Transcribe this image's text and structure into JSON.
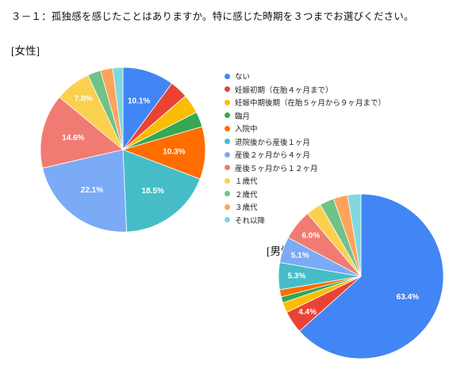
{
  "title": "３－１：孤独感を感じたことはありますか。特に感じた時期を３つまでお選びください。",
  "female_label": "[女性]",
  "male_label": "[男性]",
  "legend": [
    {
      "label": "ない",
      "color": "#4285F4"
    },
    {
      "label": "妊娠初期（在胎４ヶ月まで）",
      "color": "#EA4335"
    },
    {
      "label": "妊娠中期後期（在胎５ヶ月から９ヶ月まで）",
      "color": "#FBBC04"
    },
    {
      "label": "臨月",
      "color": "#34A853"
    },
    {
      "label": "入院中",
      "color": "#FF6D01"
    },
    {
      "label": "退院後から産後１ヶ月",
      "color": "#46BDC6"
    },
    {
      "label": "産後２ヶ月から４ヶ月",
      "color": "#7BAAF7"
    },
    {
      "label": "産後５ヶ月から１２ヶ月",
      "color": "#F07B72"
    },
    {
      "label": "１歳代",
      "color": "#FCD04F"
    },
    {
      "label": "２歳代",
      "color": "#71C287"
    },
    {
      "label": "３歳代",
      "color": "#FFA35C"
    },
    {
      "label": "それ以降",
      "color": "#7FD8DD"
    }
  ],
  "chart_data": [
    {
      "type": "pie",
      "title": "[女性]",
      "legend_position": "right",
      "categories": [
        "ない",
        "妊娠初期（在胎４ヶ月まで）",
        "妊娠中期後期（在胎５ヶ月から９ヶ月まで）",
        "臨月",
        "入院中",
        "退院後から産後１ヶ月",
        "産後２ヶ月から４ヶ月",
        "産後５ヶ月から１２ヶ月",
        "１歳代",
        "２歳代",
        "３歳代",
        "それ以降"
      ],
      "values": [
        10.1,
        3.6,
        3.8,
        3.0,
        10.3,
        18.5,
        22.1,
        14.6,
        7.0,
        2.6,
        2.4,
        2.0
      ],
      "visible_labels": [
        "10.1%",
        "",
        "",
        "",
        "10.3%",
        "18.5%",
        "22.1%",
        "14.6%",
        "7.0%",
        "",
        "",
        ""
      ]
    },
    {
      "type": "pie",
      "title": "[男性]",
      "legend_position": "right",
      "categories": [
        "ない",
        "妊娠初期（在胎４ヶ月まで）",
        "妊娠中期後期（在胎５ヶ月から９ヶ月まで）",
        "臨月",
        "入院中",
        "退院後から産後１ヶ月",
        "産後２ヶ月から４ヶ月",
        "産後５ヶ月から１２ヶ月",
        "１歳代",
        "２歳代",
        "３歳代",
        "それ以降"
      ],
      "values": [
        63.4,
        4.4,
        2.0,
        1.2,
        1.4,
        5.3,
        5.1,
        6.0,
        3.0,
        2.8,
        2.8,
        2.6
      ],
      "visible_labels": [
        "63.4%",
        "4.4%",
        "",
        "",
        "",
        "5.3%",
        "5.1%",
        "6.0%",
        "",
        "",
        "",
        ""
      ]
    }
  ]
}
